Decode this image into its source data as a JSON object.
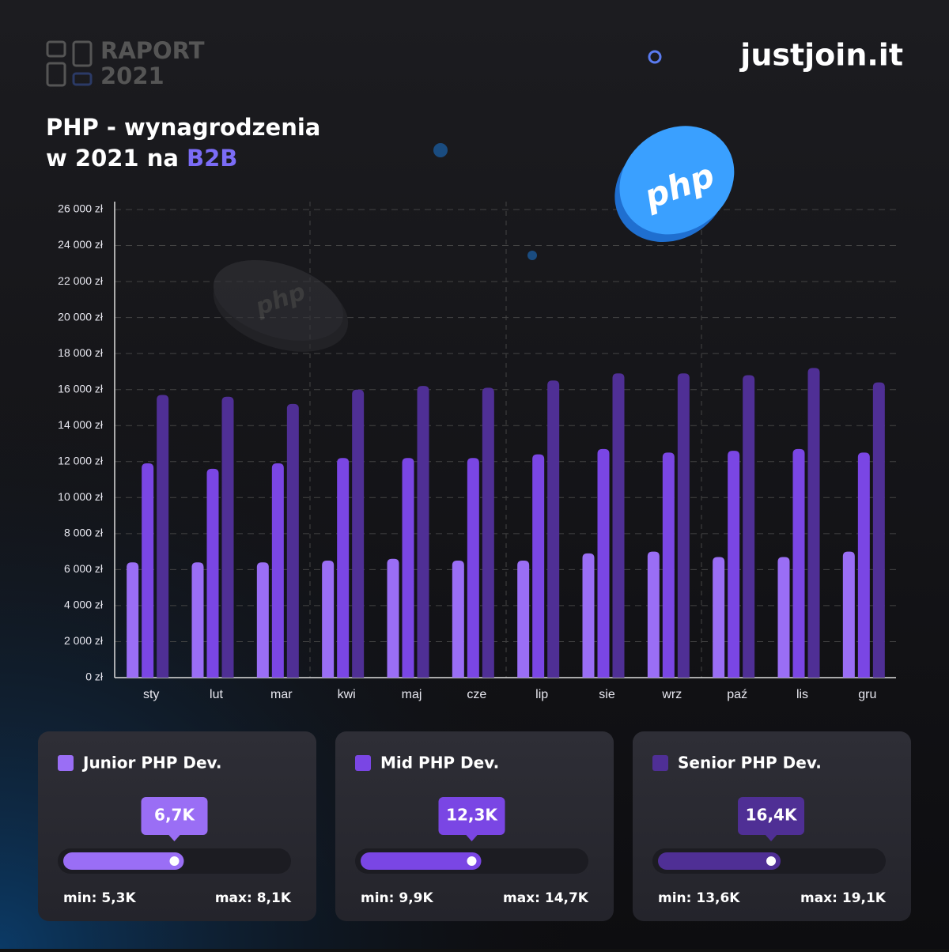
{
  "header": {
    "report": [
      "RAPORT",
      "2021"
    ],
    "brand": "justjoin.it",
    "logo_text": "php"
  },
  "chart_data": {
    "type": "bar",
    "title": [
      "PHP - wynagrodzenia",
      "w 2021 na "
    ],
    "title_highlight": "B2B",
    "categories": [
      "sty",
      "lut",
      "mar",
      "kwi",
      "maj",
      "cze",
      "lip",
      "sie",
      "wrz",
      "paź",
      "lis",
      "gru"
    ],
    "series": [
      {
        "name": "Junior PHP Dev.",
        "color": "#9a6ef5",
        "values": [
          6400,
          6400,
          6400,
          6500,
          6600,
          6500,
          6500,
          6900,
          7000,
          6700,
          6700,
          7000
        ],
        "summary": {
          "avg": {
            "value": 6700,
            "label": "6,7K"
          },
          "min": {
            "value": 5300,
            "label": "min: 5,3K"
          },
          "max": {
            "value": 8100,
            "label": "max: 8,1K"
          }
        }
      },
      {
        "name": "Mid PHP Dev.",
        "color": "#7a46e4",
        "values": [
          11900,
          11600,
          11900,
          12200,
          12200,
          12200,
          12400,
          12700,
          12500,
          12600,
          12700,
          12500
        ],
        "summary": {
          "avg": {
            "value": 12300,
            "label": "12,3K"
          },
          "min": {
            "value": 9900,
            "label": "min: 9,9K"
          },
          "max": {
            "value": 14700,
            "label": "max: 14,7K"
          }
        }
      },
      {
        "name": "Senior PHP Dev.",
        "color": "#4f2f95",
        "values": [
          15700,
          15600,
          15200,
          16000,
          16200,
          16100,
          16500,
          16900,
          16900,
          16800,
          17200,
          16400
        ],
        "summary": {
          "avg": {
            "value": 16400,
            "label": "16,4K"
          },
          "min": {
            "value": 13600,
            "label": "min: 13,6K"
          },
          "max": {
            "value": 19100,
            "label": "max: 19,1K"
          }
        }
      }
    ],
    "ylim": [
      0,
      26000
    ],
    "yticks": [
      {
        "value": 0,
        "label": "0 zł"
      },
      {
        "value": 2000,
        "label": "2 000 zł"
      },
      {
        "value": 4000,
        "label": "4 000 zł"
      },
      {
        "value": 6000,
        "label": "6 000 zł"
      },
      {
        "value": 8000,
        "label": "8 000 zł"
      },
      {
        "value": 10000,
        "label": "10 000 zł"
      },
      {
        "value": 12000,
        "label": "12 000 zł"
      },
      {
        "value": 14000,
        "label": "14 000 zł"
      },
      {
        "value": 16000,
        "label": "16 000 zł"
      },
      {
        "value": 18000,
        "label": "18 000 zł"
      },
      {
        "value": 20000,
        "label": "20 000 zł"
      },
      {
        "value": 22000,
        "label": "22 000 zł"
      },
      {
        "value": 24000,
        "label": "24 000 zł"
      },
      {
        "value": 26000,
        "label": "26 000 zł"
      }
    ],
    "grid": true
  }
}
